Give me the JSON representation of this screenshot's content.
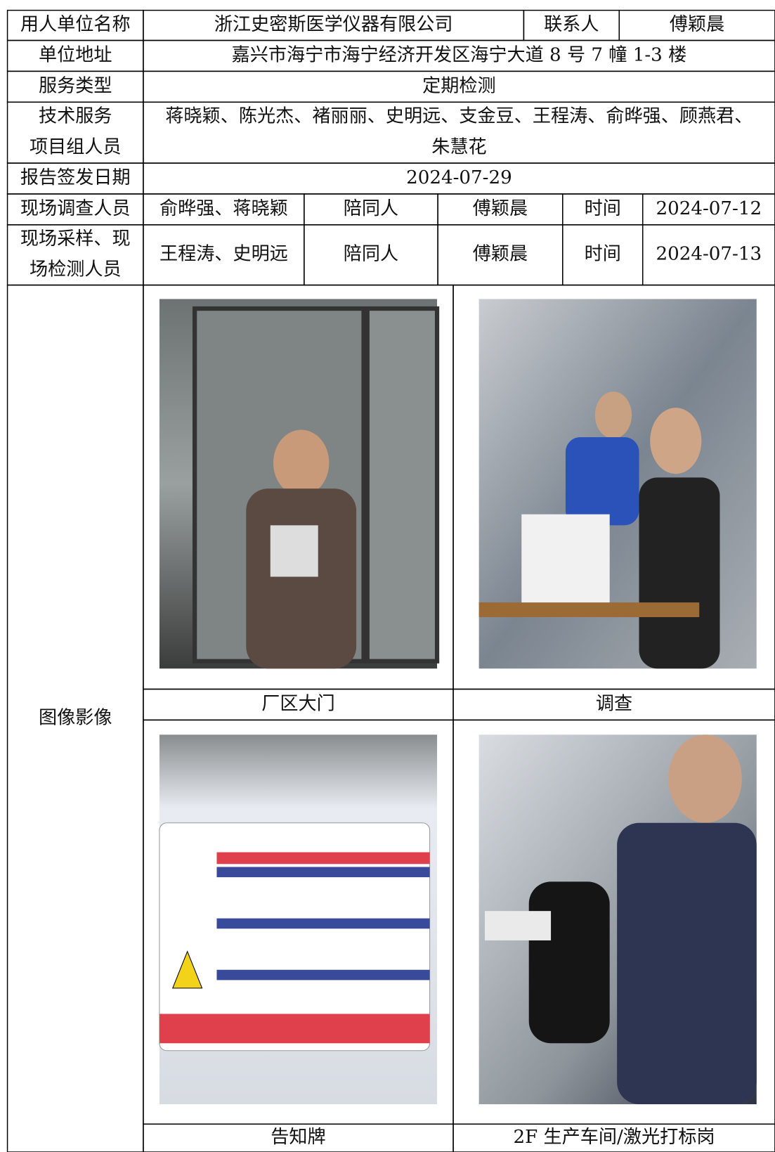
{
  "table": {
    "rows": [
      [
        "用人单位名称",
        "浙江史密斯医学仪器有限公司",
        "联系人",
        "傅颖晨"
      ],
      [
        "单位地址",
        "嘉兴市海宁市海宁经济开发区海宁大道 8 号 7 幢 1-3 楼"
      ],
      [
        "服务类型",
        "定期检测"
      ],
      [
        [
          "技术服务",
          "项目组人员"
        ],
        [
          "蒋晓颖、陈光杰、褚丽丽、史明远、支金豆、王程涛、俞晔强、顾燕君、",
          "朱慧花"
        ]
      ],
      [
        "报告签发日期",
        "2024-07-29"
      ],
      [
        "现场调查人员",
        "俞晔强、蒋晓颖",
        "陪同人",
        "傅颖晨",
        "时间",
        "2024-07-12"
      ],
      [
        [
          "现场采样、现",
          "场检测人员"
        ],
        "王程涛、史明远",
        "陪同人",
        "傅颖晨",
        "时间",
        "2024-07-13"
      ]
    ],
    "images": {
      "label": "图像影像",
      "items": [
        {
          "caption": "厂区大门"
        },
        {
          "caption": "调查"
        },
        {
          "caption": "告知牌"
        },
        {
          "caption": "2F 生产车间/激光打标岗"
        }
      ]
    }
  }
}
